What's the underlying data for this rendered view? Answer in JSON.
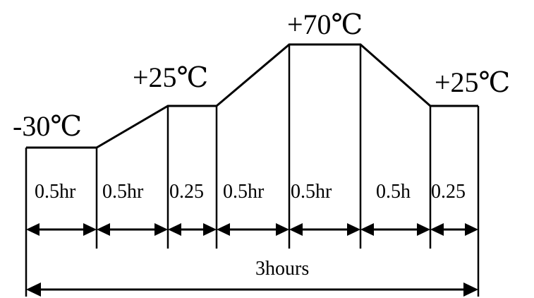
{
  "temperatures": {
    "start": "-30℃",
    "mid1": "+25℃",
    "peak": "+70℃",
    "end": "+25℃"
  },
  "segments": [
    {
      "label": "0.5hr"
    },
    {
      "label": "0.5hr"
    },
    {
      "label": "0.25"
    },
    {
      "label": "0.5hr"
    },
    {
      "label": "0.5hr"
    },
    {
      "label": "0.5h"
    },
    {
      "label": "0.25"
    }
  ],
  "total": {
    "label": "3hours"
  }
}
